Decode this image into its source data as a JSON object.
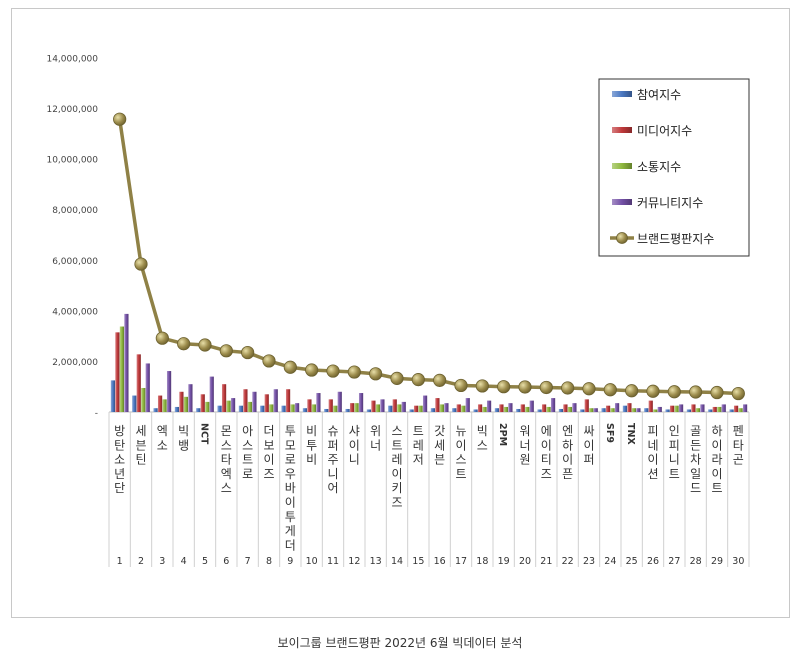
{
  "caption": "보이그룹 브랜드평판  2022년 6월 빅데이터 분석",
  "chart_data": {
    "type": "bar",
    "title": "",
    "xlabel": "",
    "ylabel": "",
    "ylim": [
      0,
      14000000
    ],
    "yticks": [
      0,
      2000000,
      4000000,
      6000000,
      8000000,
      10000000,
      12000000,
      14000000
    ],
    "ytick_labels": [
      "-",
      "2,000,000",
      "4,000,000",
      "6,000,000",
      "8,000,000",
      "10,000,000",
      "12,000,000",
      "14,000,000"
    ],
    "grid": false,
    "legend_position": "top-right",
    "ranks": [
      "1",
      "2",
      "3",
      "4",
      "5",
      "6",
      "7",
      "8",
      "9",
      "10",
      "11",
      "12",
      "13",
      "14",
      "15",
      "16",
      "17",
      "18",
      "19",
      "20",
      "21",
      "22",
      "23",
      "24",
      "25",
      "26",
      "27",
      "28",
      "29",
      "30"
    ],
    "categories": [
      "방탄소년단",
      "세븐틴",
      "엑소",
      "빅뱅",
      "NCT",
      "몬스타엑스",
      "아스트로",
      "더보이즈",
      "투모로우바이투게더",
      "비투비",
      "슈퍼주니어",
      "샤이니",
      "위너",
      "스트레이키즈",
      "트레저",
      "갓세븐",
      "뉴이스트",
      "빅스",
      "2PM",
      "워너원",
      "에이티즈",
      "엔하이픈",
      "싸이퍼",
      "SF9",
      "TNX",
      "피네이션",
      "인피니트",
      "골든차일드",
      "하이라이트",
      "펜타곤"
    ],
    "series": [
      {
        "name": "참여지수",
        "kind": "bar",
        "color": "#4a78c2",
        "values": [
          1250000,
          650000,
          150000,
          200000,
          150000,
          250000,
          250000,
          250000,
          250000,
          150000,
          120000,
          120000,
          100000,
          250000,
          100000,
          150000,
          150000,
          100000,
          150000,
          120000,
          100000,
          120000,
          100000,
          150000,
          250000,
          150000,
          100000,
          100000,
          100000,
          100000
        ]
      },
      {
        "name": "미디어지수",
        "kind": "bar",
        "color": "#c0393b",
        "values": [
          3150000,
          2280000,
          650000,
          800000,
          700000,
          1100000,
          900000,
          700000,
          900000,
          500000,
          500000,
          350000,
          450000,
          500000,
          250000,
          550000,
          300000,
          300000,
          300000,
          300000,
          300000,
          300000,
          500000,
          250000,
          350000,
          450000,
          250000,
          300000,
          200000,
          250000
        ]
      },
      {
        "name": "소통지수",
        "kind": "bar",
        "color": "#8fb83e",
        "values": [
          3380000,
          950000,
          500000,
          600000,
          400000,
          450000,
          400000,
          300000,
          300000,
          300000,
          250000,
          350000,
          300000,
          300000,
          250000,
          300000,
          250000,
          200000,
          200000,
          200000,
          200000,
          200000,
          150000,
          150000,
          150000,
          100000,
          250000,
          150000,
          200000,
          150000
        ]
      },
      {
        "name": "커뮤니티지수",
        "kind": "bar",
        "color": "#7350a6",
        "values": [
          3880000,
          1920000,
          1620000,
          1100000,
          1400000,
          550000,
          800000,
          900000,
          350000,
          750000,
          800000,
          750000,
          500000,
          400000,
          650000,
          350000,
          550000,
          450000,
          350000,
          450000,
          550000,
          350000,
          150000,
          350000,
          150000,
          200000,
          300000,
          300000,
          300000,
          300000
        ]
      },
      {
        "name": "브랜드평판지수",
        "kind": "line",
        "color": "#8f8146",
        "values": [
          11580000,
          5850000,
          2920000,
          2700000,
          2650000,
          2420000,
          2350000,
          2020000,
          1770000,
          1660000,
          1620000,
          1580000,
          1510000,
          1330000,
          1280000,
          1250000,
          1050000,
          1030000,
          1000000,
          990000,
          970000,
          950000,
          920000,
          880000,
          840000,
          820000,
          800000,
          790000,
          770000,
          730000
        ]
      }
    ]
  }
}
